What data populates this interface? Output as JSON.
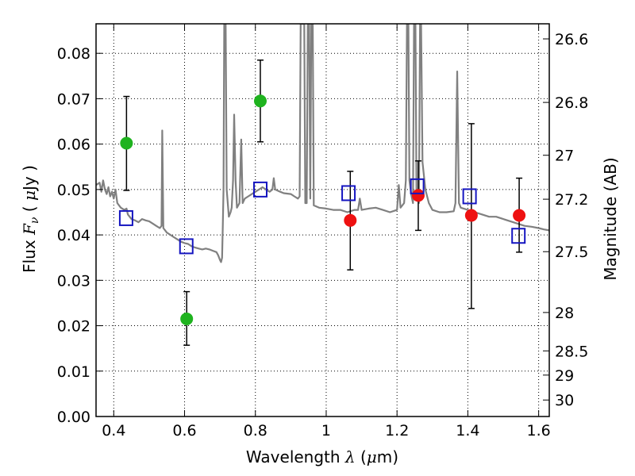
{
  "chart_data": {
    "type": "scatter",
    "xlabel": "Wavelength  λ (μm)",
    "ylabel": "Flux  F_ν  ( μJy )",
    "ylabel_parts": {
      "pre": "Flux  ",
      "var": "F",
      "sub": "ν",
      "post": "  ( ",
      "mu": "μ",
      "unit": "Jy )"
    },
    "xlabel_parts": {
      "pre": "Wavelength  ",
      "var": "λ",
      "post": " (",
      "mu": "μ",
      "unit": "m)"
    },
    "y2label": "Magnitude (AB)",
    "xlim": [
      0.35,
      1.63
    ],
    "ylim": [
      0.0,
      0.0865
    ],
    "grid": true,
    "x_ticks": [
      {
        "value": 0.4,
        "label": "0.4"
      },
      {
        "value": 0.6,
        "label": "0.6"
      },
      {
        "value": 0.8,
        "label": "0.8"
      },
      {
        "value": 1.0,
        "label": "1"
      },
      {
        "value": 1.2,
        "label": "1.2"
      },
      {
        "value": 1.4,
        "label": "1.4"
      },
      {
        "value": 1.6,
        "label": "1.6"
      }
    ],
    "y_ticks": [
      {
        "value": 0.0,
        "label": "0.00"
      },
      {
        "value": 0.01,
        "label": "0.01"
      },
      {
        "value": 0.02,
        "label": "0.02"
      },
      {
        "value": 0.03,
        "label": "0.03"
      },
      {
        "value": 0.04,
        "label": "0.04"
      },
      {
        "value": 0.05,
        "label": "0.05"
      },
      {
        "value": 0.06,
        "label": "0.06"
      },
      {
        "value": 0.07,
        "label": "0.07"
      },
      {
        "value": 0.08,
        "label": "0.08"
      }
    ],
    "y2_ticks": [
      {
        "value": 26.6,
        "label": "26.6"
      },
      {
        "value": 26.8,
        "label": "26.8"
      },
      {
        "value": 27.0,
        "label": "27"
      },
      {
        "value": 27.2,
        "label": "27.2"
      },
      {
        "value": 27.5,
        "label": "27.5"
      },
      {
        "value": 28.0,
        "label": "28"
      },
      {
        "value": 28.5,
        "label": "28.5"
      },
      {
        "value": 29.0,
        "label": "29"
      },
      {
        "value": 30.0,
        "label": "30"
      }
    ],
    "series": [
      {
        "kind": "line",
        "color": "#808080",
        "points": [
          [
            0.35,
            0.051
          ],
          [
            0.36,
            0.0515
          ],
          [
            0.365,
            0.0495
          ],
          [
            0.37,
            0.052
          ],
          [
            0.375,
            0.05
          ],
          [
            0.38,
            0.049
          ],
          [
            0.385,
            0.0505
          ],
          [
            0.39,
            0.0485
          ],
          [
            0.395,
            0.0495
          ],
          [
            0.4,
            0.048
          ],
          [
            0.405,
            0.05
          ],
          [
            0.41,
            0.047
          ],
          [
            0.42,
            0.046
          ],
          [
            0.43,
            0.0455
          ],
          [
            0.436,
            0.0458
          ],
          [
            0.44,
            0.0445
          ],
          [
            0.45,
            0.0435
          ],
          [
            0.46,
            0.0432
          ],
          [
            0.47,
            0.0428
          ],
          [
            0.48,
            0.0435
          ],
          [
            0.49,
            0.0432
          ],
          [
            0.5,
            0.043
          ],
          [
            0.51,
            0.0425
          ],
          [
            0.52,
            0.042
          ],
          [
            0.53,
            0.0415
          ],
          [
            0.535,
            0.042
          ],
          [
            0.537,
            0.063
          ],
          [
            0.54,
            0.0415
          ],
          [
            0.55,
            0.0405
          ],
          [
            0.56,
            0.04
          ],
          [
            0.57,
            0.0395
          ],
          [
            0.58,
            0.039
          ],
          [
            0.59,
            0.0385
          ],
          [
            0.6,
            0.0382
          ],
          [
            0.61,
            0.038
          ],
          [
            0.62,
            0.0375
          ],
          [
            0.63,
            0.0372
          ],
          [
            0.64,
            0.037
          ],
          [
            0.65,
            0.0368
          ],
          [
            0.66,
            0.037
          ],
          [
            0.67,
            0.0368
          ],
          [
            0.68,
            0.0365
          ],
          [
            0.69,
            0.0362
          ],
          [
            0.695,
            0.0355
          ],
          [
            0.7,
            0.0345
          ],
          [
            0.703,
            0.034
          ],
          [
            0.706,
            0.035
          ],
          [
            0.708,
            0.042
          ],
          [
            0.71,
            0.05
          ],
          [
            0.712,
            0.0865
          ],
          [
            0.716,
            0.0865
          ],
          [
            0.719,
            0.05
          ],
          [
            0.725,
            0.044
          ],
          [
            0.73,
            0.045
          ],
          [
            0.733,
            0.046
          ],
          [
            0.737,
            0.052
          ],
          [
            0.74,
            0.0665
          ],
          [
            0.744,
            0.052
          ],
          [
            0.748,
            0.046
          ],
          [
            0.755,
            0.047
          ],
          [
            0.76,
            0.061
          ],
          [
            0.764,
            0.047
          ],
          [
            0.77,
            0.048
          ],
          [
            0.78,
            0.0485
          ],
          [
            0.79,
            0.049
          ],
          [
            0.8,
            0.0495
          ],
          [
            0.81,
            0.05
          ],
          [
            0.82,
            0.0505
          ],
          [
            0.83,
            0.05
          ],
          [
            0.84,
            0.0495
          ],
          [
            0.848,
            0.05
          ],
          [
            0.852,
            0.0525
          ],
          [
            0.856,
            0.05
          ],
          [
            0.87,
            0.0495
          ],
          [
            0.88,
            0.0492
          ],
          [
            0.9,
            0.049
          ],
          [
            0.91,
            0.0485
          ],
          [
            0.92,
            0.048
          ],
          [
            0.925,
            0.0485
          ],
          [
            0.928,
            0.0865
          ],
          [
            0.938,
            0.0865
          ],
          [
            0.941,
            0.047
          ],
          [
            0.945,
            0.047
          ],
          [
            0.948,
            0.0865
          ],
          [
            0.952,
            0.0865
          ],
          [
            0.955,
            0.048
          ],
          [
            0.958,
            0.0865
          ],
          [
            0.962,
            0.0865
          ],
          [
            0.965,
            0.0465
          ],
          [
            0.98,
            0.046
          ],
          [
            1.0,
            0.0458
          ],
          [
            1.02,
            0.0455
          ],
          [
            1.04,
            0.0455
          ],
          [
            1.06,
            0.045
          ],
          [
            1.08,
            0.0455
          ],
          [
            1.09,
            0.0455
          ],
          [
            1.095,
            0.048
          ],
          [
            1.1,
            0.0455
          ],
          [
            1.12,
            0.0458
          ],
          [
            1.14,
            0.046
          ],
          [
            1.16,
            0.0455
          ],
          [
            1.18,
            0.045
          ],
          [
            1.2,
            0.0455
          ],
          [
            1.205,
            0.051
          ],
          [
            1.21,
            0.046
          ],
          [
            1.22,
            0.047
          ],
          [
            1.225,
            0.052
          ],
          [
            1.228,
            0.0865
          ],
          [
            1.232,
            0.0865
          ],
          [
            1.235,
            0.052
          ],
          [
            1.24,
            0.049
          ],
          [
            1.245,
            0.047
          ],
          [
            1.248,
            0.0865
          ],
          [
            1.252,
            0.0865
          ],
          [
            1.255,
            0.049
          ],
          [
            1.262,
            0.047
          ],
          [
            1.265,
            0.0865
          ],
          [
            1.268,
            0.0865
          ],
          [
            1.272,
            0.056
          ],
          [
            1.28,
            0.05
          ],
          [
            1.29,
            0.047
          ],
          [
            1.3,
            0.0455
          ],
          [
            1.32,
            0.045
          ],
          [
            1.34,
            0.045
          ],
          [
            1.36,
            0.0452
          ],
          [
            1.365,
            0.047
          ],
          [
            1.37,
            0.076
          ],
          [
            1.375,
            0.047
          ],
          [
            1.38,
            0.046
          ],
          [
            1.4,
            0.0455
          ],
          [
            1.42,
            0.045
          ],
          [
            1.44,
            0.0445
          ],
          [
            1.46,
            0.044
          ],
          [
            1.48,
            0.044
          ],
          [
            1.5,
            0.0435
          ],
          [
            1.52,
            0.043
          ],
          [
            1.54,
            0.0425
          ],
          [
            1.56,
            0.042
          ],
          [
            1.58,
            0.0418
          ],
          [
            1.6,
            0.0415
          ],
          [
            1.615,
            0.0412
          ],
          [
            1.63,
            0.041
          ]
        ]
      },
      {
        "kind": "points",
        "marker": "circle",
        "color": "#1fb31f",
        "points": [
          {
            "x": 0.436,
            "y": 0.0602,
            "err_low": 0.0498,
            "err_high": 0.0705
          },
          {
            "x": 0.606,
            "y": 0.0215,
            "err_low": 0.0157,
            "err_high": 0.0275
          },
          {
            "x": 0.814,
            "y": 0.0695,
            "err_low": 0.0605,
            "err_high": 0.0785
          }
        ]
      },
      {
        "kind": "points",
        "marker": "circle",
        "color": "#ee1111",
        "points": [
          {
            "x": 1.068,
            "y": 0.0432,
            "err_low": 0.0323,
            "err_high": 0.054
          },
          {
            "x": 1.26,
            "y": 0.0487,
            "err_low": 0.041,
            "err_high": 0.0563
          },
          {
            "x": 1.41,
            "y": 0.0443,
            "err_low": 0.0238,
            "err_high": 0.0645
          },
          {
            "x": 1.545,
            "y": 0.0443,
            "err_low": 0.0362,
            "err_high": 0.0525
          }
        ]
      },
      {
        "kind": "points",
        "marker": "open-square",
        "color": "#1515c0",
        "points": [
          {
            "x": 0.435,
            "y": 0.0437
          },
          {
            "x": 0.605,
            "y": 0.0375
          },
          {
            "x": 0.814,
            "y": 0.05
          },
          {
            "x": 1.063,
            "y": 0.0492
          },
          {
            "x": 1.257,
            "y": 0.0507
          },
          {
            "x": 1.405,
            "y": 0.0485
          },
          {
            "x": 1.543,
            "y": 0.0398
          }
        ]
      }
    ]
  }
}
